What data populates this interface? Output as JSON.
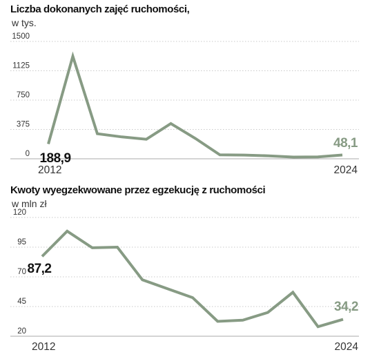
{
  "chart_data": [
    {
      "type": "line",
      "title": "Liczba dokonanych zajęć ruchomości,",
      "subtitle": "w tys.",
      "x": [
        2012,
        2013,
        2014,
        2015,
        2016,
        2017,
        2018,
        2019,
        2020,
        2021,
        2022,
        2023,
        2024
      ],
      "values": [
        188.9,
        1310,
        320,
        280,
        250,
        450,
        260,
        50,
        48,
        38,
        22,
        24,
        48.1
      ],
      "ylim": [
        0,
        1500
      ],
      "yticks": [
        0,
        375,
        750,
        1125,
        1500
      ],
      "ytick_labels": [
        "0",
        "375",
        "750",
        "1125",
        "1500"
      ],
      "xtick_labels": [
        "2012",
        "2024"
      ],
      "start_label": "188,9",
      "end_label": "48,1",
      "grid": true,
      "line_color": "#879b84"
    },
    {
      "type": "line",
      "title": "Kwoty wyegzekwowane przez egzekucję z ruchomości",
      "subtitle": "w mln zł",
      "x": [
        2012,
        2013,
        2014,
        2015,
        2016,
        2017,
        2018,
        2019,
        2020,
        2021,
        2022,
        2023,
        2024
      ],
      "values": [
        87.2,
        108.5,
        94.5,
        95,
        67.5,
        60,
        52.5,
        32.5,
        33.5,
        40,
        57,
        28,
        34.2
      ],
      "ylim": [
        20,
        120
      ],
      "yticks": [
        20,
        45,
        70,
        95,
        120
      ],
      "ytick_labels": [
        "20",
        "45",
        "70",
        "95",
        "120"
      ],
      "xtick_labels": [
        "2012",
        "2024"
      ],
      "start_label": "87,2",
      "end_label": "34,2",
      "grid": true,
      "line_color": "#879b84"
    }
  ]
}
